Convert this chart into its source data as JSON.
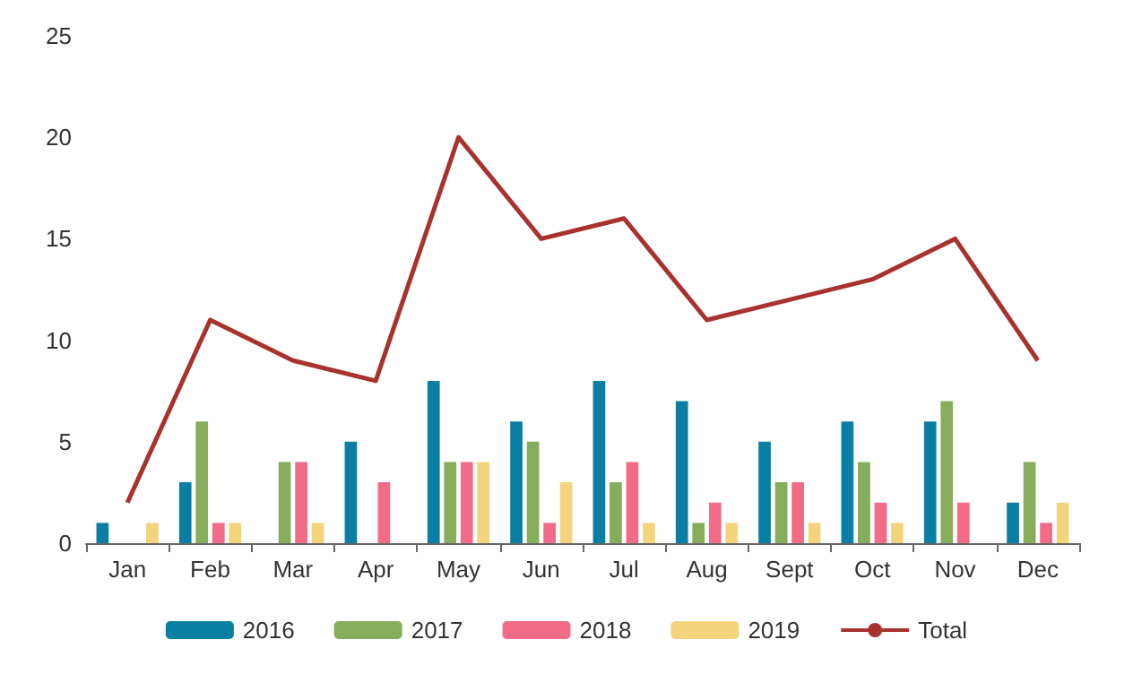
{
  "chart_data": {
    "type": "bar",
    "categories": [
      "Jan",
      "Feb",
      "Mar",
      "Apr",
      "May",
      "Jun",
      "Jul",
      "Aug",
      "Sept",
      "Oct",
      "Nov",
      "Dec"
    ],
    "series": [
      {
        "name": "2016",
        "color": "#0a7fa3",
        "values": [
          1,
          3,
          0,
          5,
          8,
          6,
          8,
          7,
          5,
          6,
          6,
          2
        ]
      },
      {
        "name": "2017",
        "color": "#86ad5b",
        "values": [
          0,
          6,
          4,
          0,
          4,
          5,
          3,
          1,
          3,
          4,
          7,
          4
        ]
      },
      {
        "name": "2018",
        "color": "#f26b87",
        "values": [
          0,
          1,
          4,
          3,
          4,
          1,
          4,
          2,
          3,
          2,
          2,
          1
        ]
      },
      {
        "name": "2019",
        "color": "#f3d47c",
        "values": [
          1,
          1,
          1,
          0,
          4,
          3,
          1,
          1,
          1,
          1,
          0,
          2
        ]
      },
      {
        "name": "Total",
        "type": "line",
        "color": "#a8322d",
        "values": [
          2,
          11,
          9,
          8,
          20,
          15,
          16,
          11,
          12,
          13,
          15,
          9
        ]
      }
    ],
    "ylim": [
      0,
      25
    ],
    "yticks": [
      0,
      5,
      10,
      15,
      20,
      25
    ],
    "grid": false,
    "legend": "bottom",
    "marker": "none",
    "line_style": "solid"
  }
}
